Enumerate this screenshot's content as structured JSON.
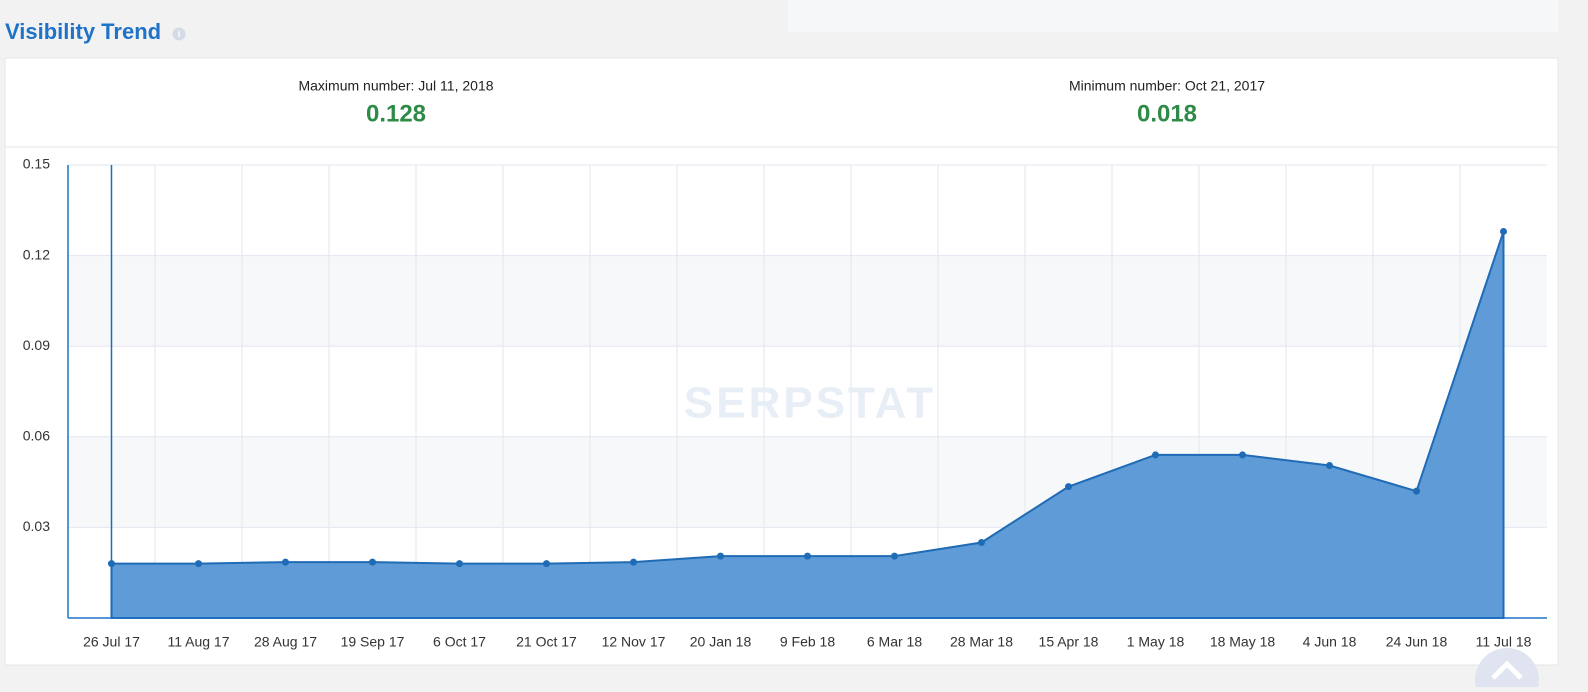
{
  "title": "Visibility Trend",
  "stats": [
    {
      "label": "Maximum number: Jul 11, 2018",
      "value": 0.128
    },
    {
      "label": "Minimum number: Oct 21, 2017",
      "value": 0.018
    }
  ],
  "chart_data": {
    "type": "area",
    "watermark": "SERPSTAT",
    "categories": [
      "26 Jul 17",
      "11 Aug 17",
      "28 Aug 17",
      "19 Sep 17",
      "6 Oct 17",
      "21 Oct 17",
      "12 Nov 17",
      "20 Jan 18",
      "9 Feb 18",
      "6 Mar 18",
      "28 Mar 18",
      "15 Apr 18",
      "1 May 18",
      "18 May 18",
      "4 Jun 18",
      "24 Jun 18",
      "11 Jul 18"
    ],
    "series": [
      {
        "name": "Visibility",
        "color": "#5f9bd6",
        "values": [
          0.018,
          0.018,
          0.0185,
          0.0185,
          0.018,
          0.018,
          0.0185,
          0.0205,
          0.0205,
          0.0205,
          0.025,
          0.0435,
          0.054,
          0.054,
          0.0505,
          0.042,
          0.128
        ]
      }
    ],
    "ylim": [
      0,
      0.15
    ],
    "yticks": [
      0.03,
      0.06,
      0.09,
      0.12,
      0.15
    ],
    "grid": true
  }
}
